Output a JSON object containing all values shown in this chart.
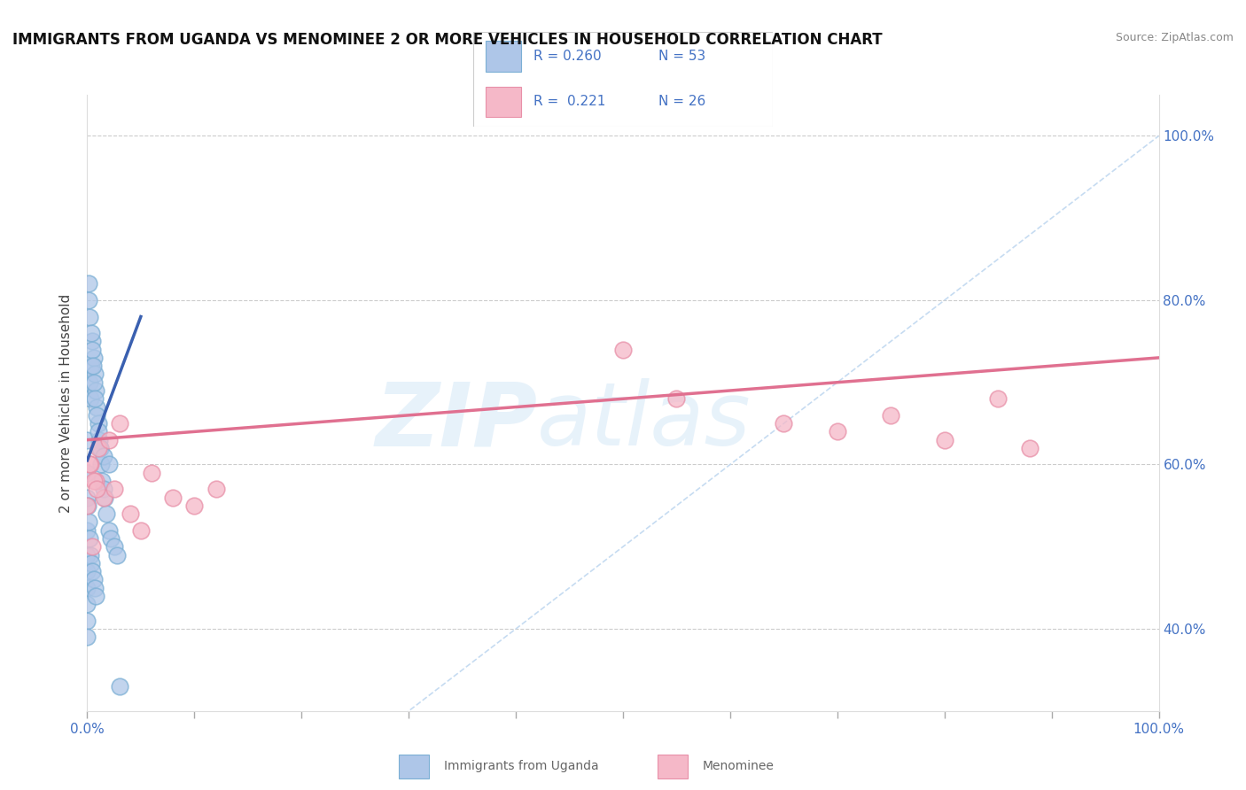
{
  "title": "IMMIGRANTS FROM UGANDA VS MENOMINEE 2 OR MORE VEHICLES IN HOUSEHOLD CORRELATION CHART",
  "source": "Source: ZipAtlas.com",
  "ylabel": "2 or more Vehicles in Household",
  "r_uganda": 0.26,
  "n_uganda": 53,
  "r_menominee": 0.221,
  "n_menominee": 26,
  "color_uganda_fill": "#aec6e8",
  "color_uganda_edge": "#7bafd4",
  "color_menominee_fill": "#f5b8c8",
  "color_menominee_edge": "#e890a8",
  "trendline_uganda": "#3a60b0",
  "trendline_menominee": "#e07090",
  "diagonal_color": "#c0d8f0",
  "xmin": 0,
  "xmax": 100,
  "ymin": 30,
  "ymax": 105,
  "uganda_x": [
    0.0,
    0.0,
    0.0,
    0.0,
    0.0,
    0.0,
    0.0,
    0.0,
    0.0,
    0.0,
    0.2,
    0.3,
    0.4,
    0.5,
    0.6,
    0.7,
    0.8,
    0.9,
    1.0,
    1.1,
    1.2,
    1.3,
    1.4,
    1.5,
    1.6,
    1.8,
    2.0,
    2.2,
    2.5,
    2.8,
    0.1,
    0.15,
    0.25,
    0.35,
    0.45,
    0.55,
    0.65,
    0.75,
    0.85,
    0.05,
    0.1,
    0.2,
    0.3,
    0.4,
    0.5,
    0.6,
    0.7,
    0.8,
    1.0,
    1.2,
    1.5,
    2.0,
    3.0
  ],
  "uganda_y": [
    63.0,
    59.0,
    56.0,
    52.0,
    49.0,
    47.0,
    45.0,
    43.0,
    41.0,
    39.0,
    70.0,
    68.0,
    72.0,
    75.0,
    73.0,
    71.0,
    69.0,
    67.0,
    65.0,
    63.0,
    62.0,
    60.0,
    58.0,
    57.0,
    56.0,
    54.0,
    52.0,
    51.0,
    50.0,
    49.0,
    82.0,
    80.0,
    78.0,
    76.0,
    74.0,
    72.0,
    70.0,
    68.0,
    66.0,
    55.0,
    53.0,
    51.0,
    49.0,
    48.0,
    47.0,
    46.0,
    45.0,
    44.0,
    64.0,
    62.0,
    61.0,
    60.0,
    33.0
  ],
  "menominee_x": [
    0.0,
    0.3,
    0.5,
    0.8,
    1.0,
    1.5,
    2.0,
    2.5,
    3.0,
    4.0,
    5.0,
    6.0,
    8.0,
    10.0,
    12.0,
    50.0,
    55.0,
    65.0,
    70.0,
    75.0,
    80.0,
    85.0,
    88.0,
    0.2,
    0.6,
    0.9
  ],
  "menominee_y": [
    55.0,
    60.0,
    50.0,
    58.0,
    62.0,
    56.0,
    63.0,
    57.0,
    65.0,
    54.0,
    52.0,
    59.0,
    56.0,
    55.0,
    57.0,
    74.0,
    68.0,
    65.0,
    64.0,
    66.0,
    63.0,
    68.0,
    62.0,
    60.0,
    58.0,
    57.0
  ],
  "uganda_trendline_x": [
    0.0,
    5.0
  ],
  "uganda_trendline_y": [
    60.5,
    78.0
  ],
  "menominee_trendline_x": [
    0.0,
    100.0
  ],
  "menominee_trendline_y": [
    63.0,
    73.0
  ]
}
